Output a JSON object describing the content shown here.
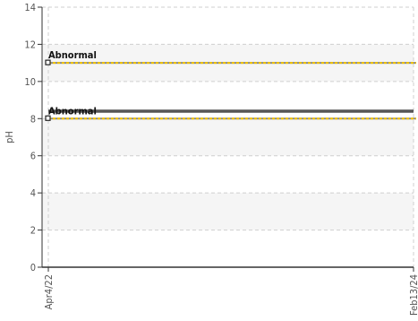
{
  "chart_data": {
    "type": "line",
    "title": "",
    "xlabel": "",
    "ylabel": "pH",
    "x_tick_labels": [
      "Apr4/22",
      "Feb13/24"
    ],
    "x_range": [
      "2022-04-04",
      "2024-02-13"
    ],
    "ylim": [
      0,
      14
    ],
    "y_ticks": [
      0,
      2,
      4,
      6,
      8,
      10,
      12,
      14
    ],
    "grid": true,
    "banded_background": true,
    "series": [
      {
        "values": [
          8.4,
          8.4
        ],
        "x": [
          "2022-04-04",
          "2024-02-13"
        ],
        "color": "#555555"
      }
    ],
    "reference_lines": [
      {
        "label": "Abnormal",
        "y": 11,
        "color": "#f2c200"
      },
      {
        "label": "Abnormal",
        "y": 8,
        "color": "#f2c200"
      }
    ]
  }
}
